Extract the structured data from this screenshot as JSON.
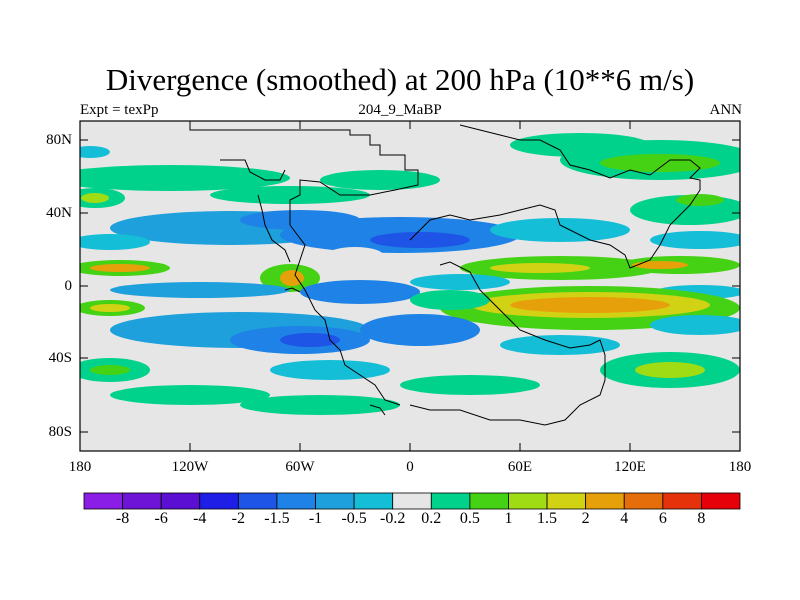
{
  "title": "Divergence (smoothed) at 200 hPa (10**6 m/s)",
  "subtitle": {
    "left": "Expt = texPp",
    "center": "204_9_MaBP",
    "right": "ANN"
  },
  "map": {
    "lat_labels": [
      "80N",
      "40N",
      "0",
      "40S",
      "80S"
    ],
    "lon_labels": [
      "180",
      "120W",
      "60W",
      "0",
      "60E",
      "120E",
      "180"
    ]
  },
  "colorbar": {
    "labels": [
      "-8",
      "-6",
      "-4",
      "-2",
      "-1.5",
      "-1",
      "-0.5",
      "-0.2",
      "0.2",
      "0.5",
      "1",
      "1.5",
      "2",
      "4",
      "6",
      "8"
    ],
    "colors": [
      "#8a1ee6",
      "#6e14d7",
      "#5a0fd2",
      "#1e1ee6",
      "#1e55e6",
      "#1e82e6",
      "#1ea0dc",
      "#14bed7",
      "#e6e6e6",
      "#00d28c",
      "#46d214",
      "#a0dc14",
      "#d2d214",
      "#e6a00a",
      "#e66e0a",
      "#e6320a",
      "#e6000a"
    ]
  }
}
